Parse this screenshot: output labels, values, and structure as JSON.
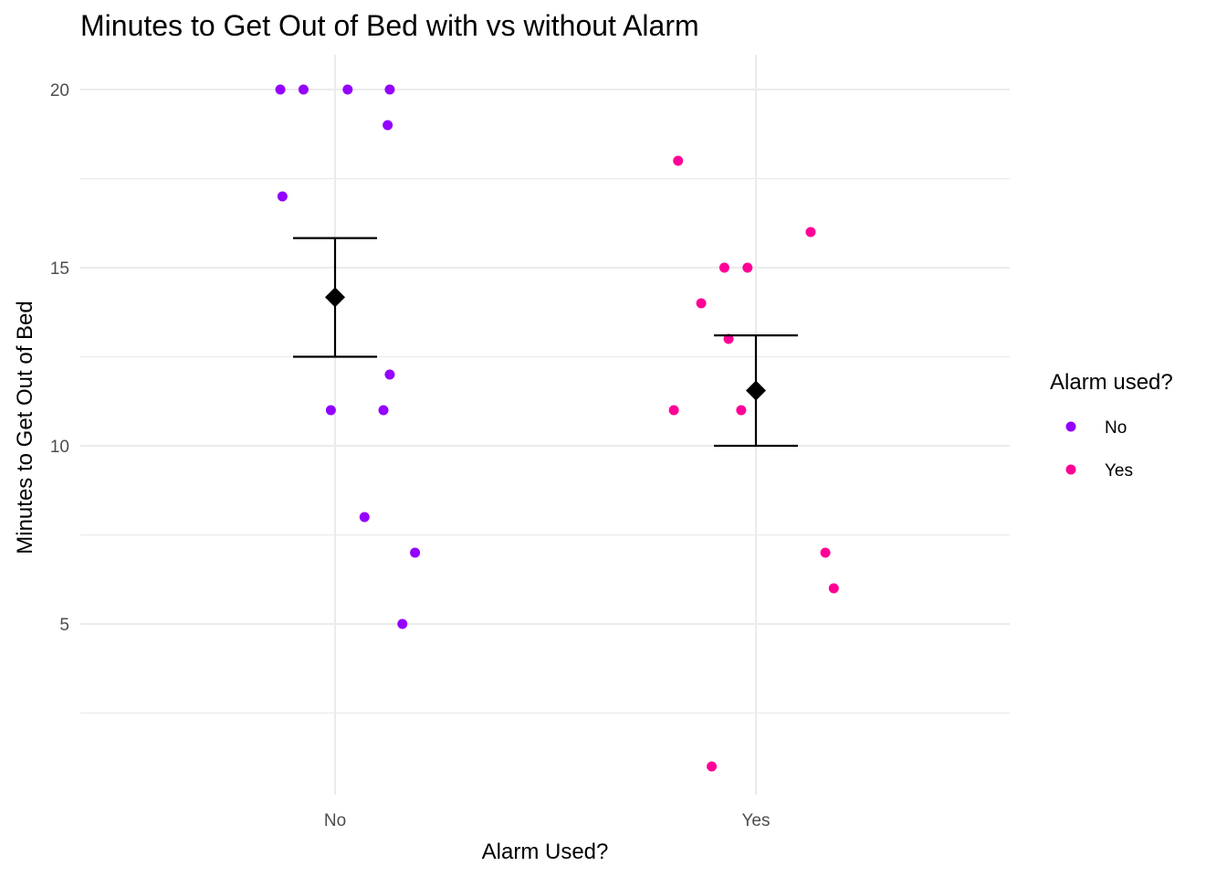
{
  "chart_data": {
    "type": "scatter",
    "title": "Minutes to Get Out of Bed with vs without Alarm",
    "xlabel": "Alarm Used?",
    "ylabel": "Minutes to Get Out of Bed",
    "categories": [
      "No",
      "Yes"
    ],
    "ylim": [
      0,
      21
    ],
    "yticks": [
      5,
      10,
      15,
      20
    ],
    "grid": true,
    "legend": {
      "title": "Alarm used?",
      "position": "right",
      "entries": [
        "No",
        "Yes"
      ]
    },
    "colors": {
      "No": "#9400ff",
      "Yes": "#ff0096",
      "summary": "#000000",
      "grid": "#ebebeb"
    },
    "series": [
      {
        "name": "No",
        "category": "No",
        "points": [
          {
            "jitter": -0.13,
            "y": 20
          },
          {
            "jitter": -0.075,
            "y": 20
          },
          {
            "jitter": 0.03,
            "y": 20
          },
          {
            "jitter": 0.13,
            "y": 20
          },
          {
            "jitter": 0.125,
            "y": 19
          },
          {
            "jitter": -0.125,
            "y": 17
          },
          {
            "jitter": 0.13,
            "y": 12
          },
          {
            "jitter": -0.01,
            "y": 11
          },
          {
            "jitter": 0.115,
            "y": 11
          },
          {
            "jitter": 0.07,
            "y": 8
          },
          {
            "jitter": 0.19,
            "y": 7
          },
          {
            "jitter": 0.16,
            "y": 5
          }
        ]
      },
      {
        "name": "Yes",
        "category": "Yes",
        "points": [
          {
            "jitter": -0.185,
            "y": 18
          },
          {
            "jitter": 0.13,
            "y": 16
          },
          {
            "jitter": -0.075,
            "y": 15
          },
          {
            "jitter": -0.02,
            "y": 15
          },
          {
            "jitter": -0.13,
            "y": 14
          },
          {
            "jitter": -0.065,
            "y": 13
          },
          {
            "jitter": -0.195,
            "y": 11
          },
          {
            "jitter": -0.035,
            "y": 11
          },
          {
            "jitter": 0.165,
            "y": 7
          },
          {
            "jitter": 0.185,
            "y": 6
          },
          {
            "jitter": -0.105,
            "y": 1
          }
        ]
      }
    ],
    "summary": [
      {
        "category": "No",
        "mean": 14.17,
        "lower": 12.5,
        "upper": 15.83
      },
      {
        "category": "Yes",
        "mean": 11.55,
        "lower": 10.0,
        "upper": 13.1
      }
    ]
  }
}
